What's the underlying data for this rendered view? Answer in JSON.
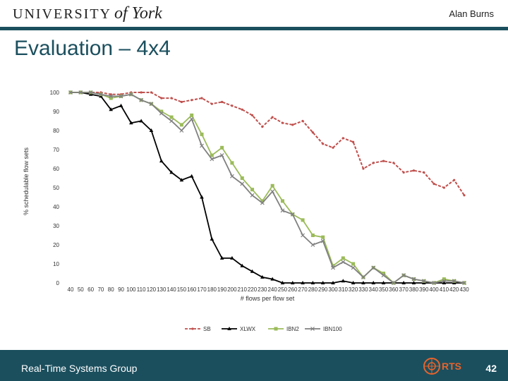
{
  "header": {
    "logo_text_1": "UNIVERSITY",
    "logo_text_2": "of York",
    "author": "Alan Burns"
  },
  "slide": {
    "title": "Evaluation – 4x4"
  },
  "footer": {
    "group": "Real-Time Systems Group",
    "logo_text": "RTS",
    "page_number": "42"
  },
  "colors": {
    "SB": "#c0504d",
    "XLWX": "#000000",
    "IBN2": "#9bbb59",
    "IBN100": "#808080",
    "theme": "#1b4f5e"
  },
  "chart_data": {
    "type": "line",
    "xlabel": "# flows per flow set",
    "ylabel": "% schedulable flow sets",
    "ylim": [
      0,
      100
    ],
    "yticks": [
      0,
      10,
      20,
      30,
      40,
      50,
      60,
      70,
      80,
      90,
      100
    ],
    "categories": [
      40,
      50,
      60,
      70,
      80,
      90,
      100,
      110,
      120,
      130,
      140,
      150,
      160,
      170,
      180,
      190,
      200,
      210,
      220,
      230,
      240,
      250,
      260,
      270,
      280,
      290,
      300,
      310,
      320,
      330,
      340,
      350,
      360,
      370,
      380,
      390,
      400,
      410,
      420,
      430
    ],
    "legend_position": "bottom",
    "series": [
      {
        "name": "SB",
        "style": "dashed",
        "marker": "dot",
        "values": [
          100,
          100,
          100,
          100,
          99,
          99,
          100,
          100,
          100,
          97,
          97,
          95,
          96,
          97,
          94,
          95,
          93,
          91,
          88,
          82,
          87,
          84,
          83,
          85,
          79,
          73,
          71,
          76,
          74,
          60,
          63,
          64,
          63,
          58,
          59,
          58,
          52,
          50,
          54,
          46
        ]
      },
      {
        "name": "XLWX",
        "style": "solid",
        "marker": "triangle",
        "values": [
          100,
          100,
          99,
          98,
          91,
          93,
          84,
          85,
          80,
          64,
          58,
          54,
          56,
          45,
          23,
          13,
          13,
          9,
          6,
          3,
          2,
          0,
          0,
          0,
          0,
          0,
          0,
          1,
          0,
          0,
          0,
          0,
          0,
          0,
          0,
          0,
          0,
          0,
          0,
          0
        ]
      },
      {
        "name": "IBN2",
        "style": "solid",
        "marker": "square",
        "values": [
          100,
          100,
          100,
          99,
          97,
          98,
          99,
          96,
          94,
          90,
          87,
          83,
          88,
          78,
          67,
          71,
          63,
          55,
          49,
          43,
          51,
          43,
          36,
          33,
          25,
          24,
          9,
          13,
          10,
          3,
          8,
          5,
          0,
          4,
          2,
          1,
          0,
          2,
          1,
          0
        ]
      },
      {
        "name": "IBN100",
        "style": "solid",
        "marker": "x",
        "values": [
          100,
          100,
          100,
          99,
          98,
          98,
          99,
          96,
          94,
          89,
          85,
          80,
          86,
          72,
          65,
          67,
          56,
          52,
          46,
          42,
          48,
          38,
          36,
          25,
          20,
          22,
          8,
          11,
          8,
          3,
          8,
          4,
          0,
          4,
          2,
          1,
          0,
          1,
          1,
          0
        ]
      }
    ]
  }
}
